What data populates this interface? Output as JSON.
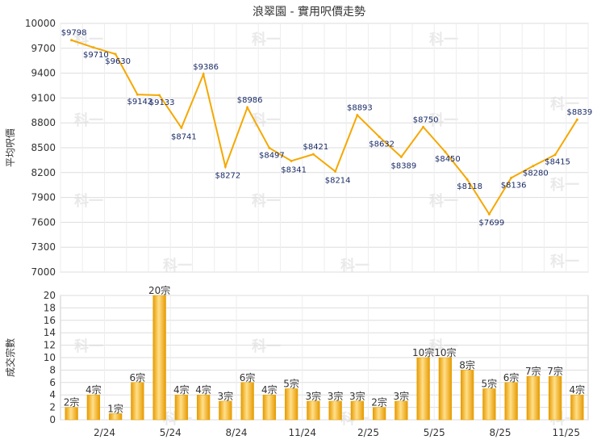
{
  "chart_data": [
    {
      "type": "line",
      "title": "浪翠園 - 實用呎價走勢",
      "ylabel": "平均呎價",
      "ylim": [
        7000,
        10000
      ],
      "yticks": [
        7000,
        7300,
        7600,
        7900,
        8200,
        8500,
        8800,
        9100,
        9400,
        9700,
        10000
      ],
      "color": "#f5a800",
      "labels": [
        "$9798",
        "$9710",
        "$9630",
        "$9142",
        "$9133",
        "$8741",
        "$9386",
        "$8272",
        "$8986",
        "$8497",
        "$8341",
        "$8421",
        "$8214",
        "$8893",
        "$8632",
        "$8389",
        "$8750",
        "$8450",
        "$8118",
        "$7699",
        "$8136",
        "$8280",
        "$8415",
        "$8839"
      ],
      "values": [
        9798,
        9710,
        9630,
        9142,
        9133,
        8741,
        9386,
        8272,
        8986,
        8497,
        8341,
        8421,
        8214,
        8893,
        8632,
        8389,
        8750,
        8450,
        8118,
        7699,
        8136,
        8280,
        8415,
        8839
      ],
      "grid": true
    },
    {
      "type": "bar",
      "ylabel": "成交宗數",
      "ylim": [
        0,
        20
      ],
      "yticks": [
        0,
        2,
        4,
        6,
        8,
        10,
        12,
        14,
        16,
        18,
        20
      ],
      "x_tick_labels": [
        "2/24",
        "5/24",
        "8/24",
        "11/24",
        "2/25",
        "5/25",
        "8/25",
        "11/25"
      ],
      "x_tick_positions": [
        2,
        5,
        8,
        11,
        14,
        17,
        20,
        23
      ],
      "labels": [
        "2宗",
        "4宗",
        "1宗",
        "6宗",
        "20宗",
        "4宗",
        "4宗",
        "3宗",
        "6宗",
        "4宗",
        "5宗",
        "3宗",
        "3宗",
        "3宗",
        "2宗",
        "3宗",
        "10宗",
        "10宗",
        "8宗",
        "5宗",
        "6宗",
        "7宗",
        "7宗",
        "4宗"
      ],
      "values": [
        2,
        4,
        1,
        6,
        20,
        4,
        4,
        3,
        6,
        4,
        5,
        3,
        3,
        3,
        2,
        3,
        10,
        10,
        8,
        5,
        6,
        7,
        7,
        4
      ],
      "color": "#f5a800",
      "grid": true
    }
  ],
  "watermark": "科一"
}
